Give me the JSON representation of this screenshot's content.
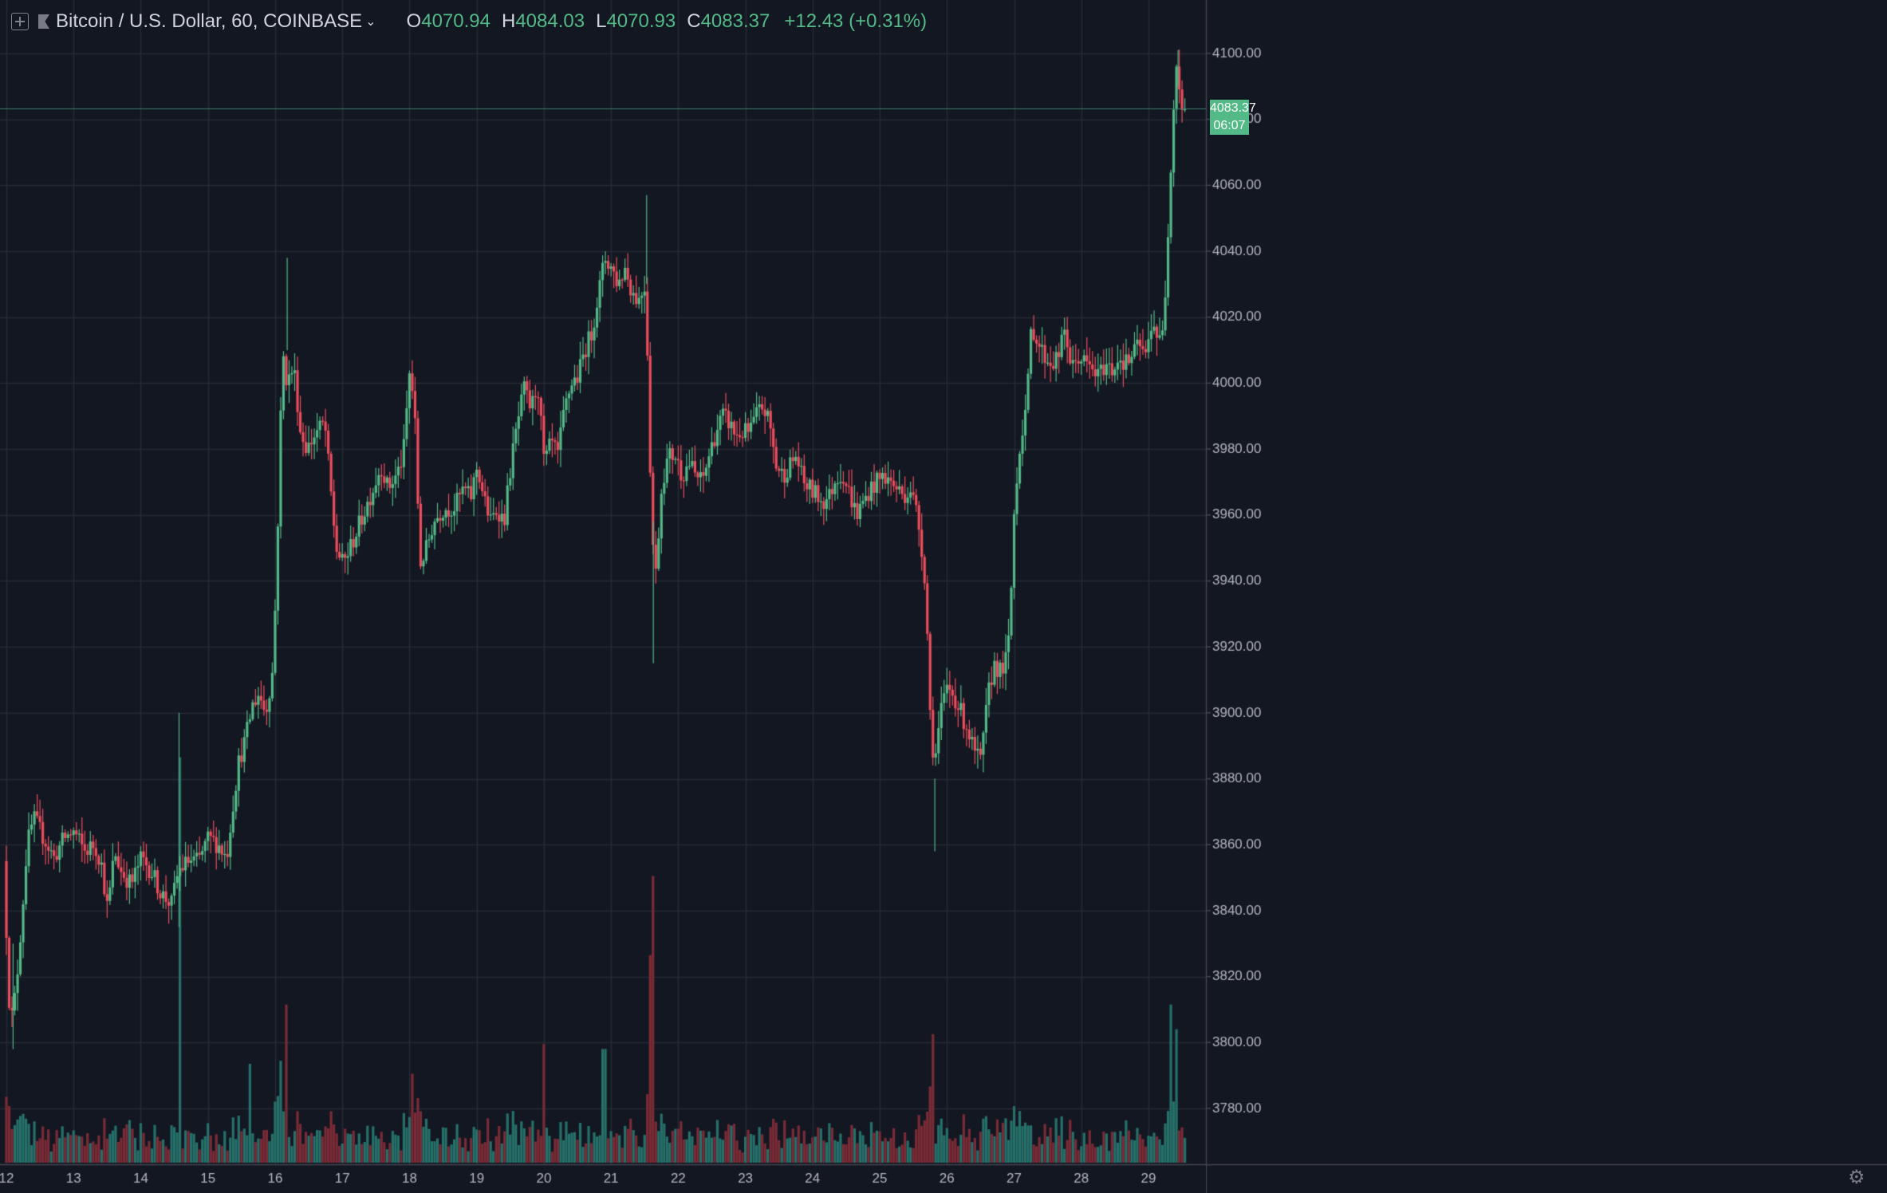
{
  "toolbar": {
    "symbol": "Bitcoin / U.S. Dollar, 60, COINBASE",
    "ohlc": {
      "o_label": "O",
      "o": "4070.94",
      "h_label": "H",
      "h": "4084.03",
      "l_label": "L",
      "l": "4070.93",
      "c_label": "C",
      "c": "4083.37",
      "change": "+12.43 (+0.31%)"
    },
    "icons": [
      "add-symbol-icon",
      "flag-icon",
      "chevron-down-icon",
      "settings-gear-icon"
    ]
  },
  "last_price": {
    "value": "4083.37",
    "countdown": "06:07"
  },
  "colors": {
    "background": "#131722",
    "up": "#53b987",
    "down": "#eb4d5c",
    "grid": "#262a35",
    "volume_up": "#26706a",
    "volume_down": "#7a2b36"
  },
  "chart_data": {
    "type": "candlestick",
    "interval": "60",
    "y_axis": {
      "min": 3765,
      "max": 4107,
      "ticks": [
        3780,
        3800,
        3820,
        3840,
        3860,
        3880,
        3900,
        3920,
        3940,
        3960,
        3980,
        4000,
        4020,
        4040,
        4060,
        4080,
        4100
      ]
    },
    "x_axis": {
      "ticks": [
        "12",
        "13",
        "14",
        "15",
        "16",
        "17",
        "18",
        "19",
        "20",
        "21",
        "22",
        "23",
        "24",
        "25",
        "26",
        "27",
        "28",
        "29"
      ]
    },
    "grid": true,
    "price_path": [
      [
        12.0,
        3855
      ],
      [
        12.05,
        3830
      ],
      [
        12.1,
        3805
      ],
      [
        12.18,
        3815
      ],
      [
        12.28,
        3840
      ],
      [
        12.35,
        3860
      ],
      [
        12.45,
        3868
      ],
      [
        12.6,
        3862
      ],
      [
        12.75,
        3856
      ],
      [
        12.9,
        3862
      ],
      [
        13.05,
        3864
      ],
      [
        13.2,
        3858
      ],
      [
        13.35,
        3860
      ],
      [
        13.45,
        3855
      ],
      [
        13.55,
        3840
      ],
      [
        13.65,
        3858
      ],
      [
        13.75,
        3852
      ],
      [
        13.9,
        3848
      ],
      [
        14.05,
        3856
      ],
      [
        14.2,
        3852
      ],
      [
        14.35,
        3845
      ],
      [
        14.5,
        3842
      ],
      [
        14.6,
        3852
      ],
      [
        14.75,
        3855
      ],
      [
        14.9,
        3855
      ],
      [
        15.05,
        3862
      ],
      [
        15.2,
        3860
      ],
      [
        15.32,
        3856
      ],
      [
        15.4,
        3870
      ],
      [
        15.5,
        3885
      ],
      [
        15.6,
        3892
      ],
      [
        15.7,
        3902
      ],
      [
        15.8,
        3906
      ],
      [
        15.9,
        3900
      ],
      [
        16.0,
        3912
      ],
      [
        16.05,
        3935
      ],
      [
        16.1,
        3970
      ],
      [
        16.15,
        4010
      ],
      [
        16.22,
        4000
      ],
      [
        16.32,
        4005
      ],
      [
        16.42,
        3985
      ],
      [
        16.52,
        3980
      ],
      [
        16.65,
        3985
      ],
      [
        16.78,
        3988
      ],
      [
        16.88,
        3965
      ],
      [
        16.95,
        3950
      ],
      [
        17.05,
        3945
      ],
      [
        17.2,
        3952
      ],
      [
        17.35,
        3960
      ],
      [
        17.5,
        3968
      ],
      [
        17.62,
        3975
      ],
      [
        17.72,
        3968
      ],
      [
        17.85,
        3972
      ],
      [
        17.95,
        3978
      ],
      [
        18.05,
        4005
      ],
      [
        18.12,
        3990
      ],
      [
        18.2,
        3945
      ],
      [
        18.3,
        3950
      ],
      [
        18.4,
        3958
      ],
      [
        18.55,
        3962
      ],
      [
        18.7,
        3962
      ],
      [
        18.85,
        3968
      ],
      [
        18.95,
        3965
      ],
      [
        19.05,
        3975
      ],
      [
        19.15,
        3965
      ],
      [
        19.25,
        3958
      ],
      [
        19.35,
        3962
      ],
      [
        19.45,
        3958
      ],
      [
        19.55,
        3975
      ],
      [
        19.65,
        3988
      ],
      [
        19.75,
        3998
      ],
      [
        19.85,
        3992
      ],
      [
        19.95,
        4000
      ],
      [
        20.05,
        3975
      ],
      [
        20.15,
        3982
      ],
      [
        20.25,
        3978
      ],
      [
        20.35,
        3992
      ],
      [
        20.45,
        4000
      ],
      [
        20.55,
        4002
      ],
      [
        20.65,
        4010
      ],
      [
        20.75,
        4015
      ],
      [
        20.88,
        4030
      ],
      [
        20.95,
        4038
      ],
      [
        21.05,
        4035
      ],
      [
        21.15,
        4030
      ],
      [
        21.25,
        4035
      ],
      [
        21.35,
        4028
      ],
      [
        21.45,
        4025
      ],
      [
        21.55,
        4030
      ],
      [
        21.6,
        4000
      ],
      [
        21.64,
        3960
      ],
      [
        21.7,
        3940
      ],
      [
        21.8,
        3970
      ],
      [
        21.9,
        3978
      ],
      [
        22.0,
        3978
      ],
      [
        22.1,
        3972
      ],
      [
        22.2,
        3976
      ],
      [
        22.3,
        3972
      ],
      [
        22.4,
        3970
      ],
      [
        22.5,
        3978
      ],
      [
        22.6,
        3985
      ],
      [
        22.7,
        3990
      ],
      [
        22.8,
        3988
      ],
      [
        22.9,
        3984
      ],
      [
        23.0,
        3985
      ],
      [
        23.1,
        3985
      ],
      [
        23.2,
        3990
      ],
      [
        23.3,
        3993
      ],
      [
        23.4,
        3988
      ],
      [
        23.5,
        3975
      ],
      [
        23.6,
        3972
      ],
      [
        23.7,
        3975
      ],
      [
        23.8,
        3978
      ],
      [
        23.9,
        3970
      ],
      [
        24.0,
        3968
      ],
      [
        24.1,
        3966
      ],
      [
        24.2,
        3964
      ],
      [
        24.3,
        3966
      ],
      [
        24.4,
        3972
      ],
      [
        24.5,
        3972
      ],
      [
        24.6,
        3966
      ],
      [
        24.7,
        3960
      ],
      [
        24.8,
        3964
      ],
      [
        24.9,
        3968
      ],
      [
        25.0,
        3970
      ],
      [
        25.1,
        3972
      ],
      [
        25.2,
        3970
      ],
      [
        25.3,
        3968
      ],
      [
        25.4,
        3966
      ],
      [
        25.5,
        3968
      ],
      [
        25.6,
        3960
      ],
      [
        25.7,
        3945
      ],
      [
        25.76,
        3920
      ],
      [
        25.8,
        3895
      ],
      [
        25.86,
        3885
      ],
      [
        25.95,
        3900
      ],
      [
        26.05,
        3908
      ],
      [
        26.15,
        3905
      ],
      [
        26.25,
        3900
      ],
      [
        26.35,
        3895
      ],
      [
        26.45,
        3888
      ],
      [
        26.55,
        3885
      ],
      [
        26.65,
        3905
      ],
      [
        26.75,
        3915
      ],
      [
        26.85,
        3912
      ],
      [
        26.95,
        3918
      ],
      [
        27.0,
        3938
      ],
      [
        27.05,
        3965
      ],
      [
        27.1,
        3975
      ],
      [
        27.15,
        3985
      ],
      [
        27.2,
        3990
      ],
      [
        27.25,
        4000
      ],
      [
        27.3,
        4018
      ],
      [
        27.4,
        4012
      ],
      [
        27.5,
        4008
      ],
      [
        27.6,
        4006
      ],
      [
        27.7,
        4008
      ],
      [
        27.8,
        4016
      ],
      [
        27.9,
        4004
      ],
      [
        28.0,
        4008
      ],
      [
        28.1,
        4006
      ],
      [
        28.2,
        4004
      ],
      [
        28.3,
        4002
      ],
      [
        28.4,
        4006
      ],
      [
        28.5,
        4004
      ],
      [
        28.6,
        4008
      ],
      [
        28.7,
        4006
      ],
      [
        28.8,
        4008
      ],
      [
        28.9,
        4012
      ],
      [
        29.0,
        4008
      ],
      [
        29.1,
        4020
      ],
      [
        29.2,
        4012
      ],
      [
        29.25,
        4015
      ],
      [
        29.3,
        4030
      ],
      [
        29.35,
        4055
      ],
      [
        29.4,
        4078
      ],
      [
        29.45,
        4098
      ],
      [
        29.5,
        4090
      ],
      [
        29.55,
        4083
      ]
    ],
    "volume_spikes": [
      [
        14.57,
        0.82
      ],
      [
        16.17,
        0.32
      ],
      [
        21.62,
        0.58
      ],
      [
        21.58,
        0.42
      ],
      [
        25.8,
        0.26
      ],
      [
        20.0,
        0.24
      ],
      [
        20.9,
        0.23
      ],
      [
        29.32,
        0.32
      ],
      [
        29.43,
        0.27
      ],
      [
        18.05,
        0.18
      ],
      [
        15.62,
        0.2
      ]
    ]
  }
}
